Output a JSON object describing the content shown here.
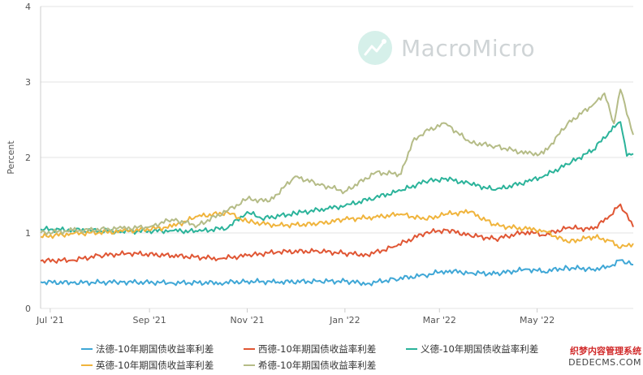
{
  "chart_data": {
    "type": "line",
    "ylabel": "Percent",
    "ylim": [
      0,
      4
    ],
    "yticks": [
      "0",
      "1",
      "2",
      "3",
      "4"
    ],
    "x_start": "2021-06-25",
    "x_end": "2022-06-30",
    "xticks": [
      {
        "label": "Jul '21",
        "date": "2021-07-01"
      },
      {
        "label": "Sep '21",
        "date": "2021-09-01"
      },
      {
        "label": "Nov '21",
        "date": "2021-11-01"
      },
      {
        "label": "Jan '22",
        "date": "2022-01-01"
      },
      {
        "label": "Mar '22",
        "date": "2022-03-01"
      },
      {
        "label": "May '22",
        "date": "2022-05-01"
      }
    ],
    "grid": true,
    "legend": "bottom",
    "series": [
      {
        "name": "法德-10年期国债收益率利差",
        "color": "#3fa7d6",
        "points": [
          [
            "2021-06-25",
            0.35
          ],
          [
            "2021-07-15",
            0.34
          ],
          [
            "2021-08-15",
            0.35
          ],
          [
            "2021-09-15",
            0.34
          ],
          [
            "2021-10-15",
            0.34
          ],
          [
            "2021-11-01",
            0.36
          ],
          [
            "2021-11-20",
            0.35
          ],
          [
            "2021-12-15",
            0.36
          ],
          [
            "2022-01-01",
            0.36
          ],
          [
            "2022-01-15",
            0.33
          ],
          [
            "2022-02-01",
            0.39
          ],
          [
            "2022-02-20",
            0.44
          ],
          [
            "2022-03-05",
            0.5
          ],
          [
            "2022-03-20",
            0.47
          ],
          [
            "2022-04-05",
            0.46
          ],
          [
            "2022-04-25",
            0.52
          ],
          [
            "2022-05-05",
            0.49
          ],
          [
            "2022-05-20",
            0.54
          ],
          [
            "2022-06-05",
            0.52
          ],
          [
            "2022-06-15",
            0.55
          ],
          [
            "2022-06-22",
            0.64
          ],
          [
            "2022-06-30",
            0.58
          ]
        ]
      },
      {
        "name": "西德-10年期国债收益率利差",
        "color": "#e05634",
        "points": [
          [
            "2021-06-25",
            0.63
          ],
          [
            "2021-07-15",
            0.64
          ],
          [
            "2021-08-01",
            0.7
          ],
          [
            "2021-08-20",
            0.73
          ],
          [
            "2021-09-15",
            0.7
          ],
          [
            "2021-10-15",
            0.66
          ],
          [
            "2021-11-01",
            0.7
          ],
          [
            "2021-11-20",
            0.75
          ],
          [
            "2021-12-15",
            0.76
          ],
          [
            "2022-01-01",
            0.73
          ],
          [
            "2022-01-15",
            0.71
          ],
          [
            "2022-02-01",
            0.82
          ],
          [
            "2022-02-20",
            1.0
          ],
          [
            "2022-03-05",
            1.04
          ],
          [
            "2022-03-20",
            0.97
          ],
          [
            "2022-04-05",
            0.92
          ],
          [
            "2022-04-25",
            1.02
          ],
          [
            "2022-05-05",
            0.97
          ],
          [
            "2022-05-20",
            1.07
          ],
          [
            "2022-06-05",
            1.05
          ],
          [
            "2022-06-15",
            1.22
          ],
          [
            "2022-06-22",
            1.38
          ],
          [
            "2022-06-30",
            1.08
          ]
        ]
      },
      {
        "name": "义德-10年期国债收益率利差",
        "color": "#2bb39a",
        "points": [
          [
            "2021-06-25",
            1.05
          ],
          [
            "2021-07-15",
            1.04
          ],
          [
            "2021-08-15",
            1.02
          ],
          [
            "2021-09-15",
            1.03
          ],
          [
            "2021-10-01",
            1.02
          ],
          [
            "2021-10-20",
            1.07
          ],
          [
            "2021-11-01",
            1.28
          ],
          [
            "2021-11-10",
            1.19
          ],
          [
            "2021-12-01",
            1.26
          ],
          [
            "2021-12-20",
            1.32
          ],
          [
            "2022-01-01",
            1.36
          ],
          [
            "2022-01-20",
            1.47
          ],
          [
            "2022-02-05",
            1.56
          ],
          [
            "2022-02-20",
            1.68
          ],
          [
            "2022-03-05",
            1.72
          ],
          [
            "2022-03-20",
            1.65
          ],
          [
            "2022-04-05",
            1.57
          ],
          [
            "2022-04-25",
            1.68
          ],
          [
            "2022-05-05",
            1.75
          ],
          [
            "2022-05-20",
            1.91
          ],
          [
            "2022-06-05",
            2.1
          ],
          [
            "2022-06-15",
            2.34
          ],
          [
            "2022-06-22",
            2.47
          ],
          [
            "2022-06-26",
            2.02
          ],
          [
            "2022-06-30",
            2.05
          ]
        ]
      },
      {
        "name": "英德-10年期国债收益率利差",
        "color": "#f0b43c",
        "points": [
          [
            "2021-06-25",
            0.95
          ],
          [
            "2021-07-15",
            0.99
          ],
          [
            "2021-08-15",
            1.02
          ],
          [
            "2021-09-15",
            1.08
          ],
          [
            "2021-10-01",
            1.22
          ],
          [
            "2021-10-20",
            1.27
          ],
          [
            "2021-11-01",
            1.15
          ],
          [
            "2021-11-20",
            1.1
          ],
          [
            "2021-12-15",
            1.12
          ],
          [
            "2022-01-01",
            1.18
          ],
          [
            "2022-01-20",
            1.21
          ],
          [
            "2022-02-05",
            1.25
          ],
          [
            "2022-02-20",
            1.18
          ],
          [
            "2022-03-05",
            1.25
          ],
          [
            "2022-03-20",
            1.28
          ],
          [
            "2022-04-05",
            1.1
          ],
          [
            "2022-04-25",
            1.05
          ],
          [
            "2022-05-05",
            1.03
          ],
          [
            "2022-05-20",
            0.88
          ],
          [
            "2022-06-05",
            0.95
          ],
          [
            "2022-06-15",
            0.9
          ],
          [
            "2022-06-22",
            0.8
          ],
          [
            "2022-06-30",
            0.86
          ]
        ]
      },
      {
        "name": "希德-10年期国债收益率利差",
        "color": "#b5bc87",
        "points": [
          [
            "2021-06-25",
            1.0
          ],
          [
            "2021-07-15",
            1.03
          ],
          [
            "2021-08-15",
            1.06
          ],
          [
            "2021-09-01",
            1.08
          ],
          [
            "2021-09-15",
            1.18
          ],
          [
            "2021-10-01",
            1.1
          ],
          [
            "2021-10-20",
            1.3
          ],
          [
            "2021-11-01",
            1.45
          ],
          [
            "2021-11-15",
            1.42
          ],
          [
            "2021-12-01",
            1.75
          ],
          [
            "2021-12-15",
            1.65
          ],
          [
            "2022-01-01",
            1.55
          ],
          [
            "2022-01-20",
            1.8
          ],
          [
            "2022-02-05",
            1.78
          ],
          [
            "2022-02-12",
            2.2
          ],
          [
            "2022-02-20",
            2.35
          ],
          [
            "2022-03-05",
            2.45
          ],
          [
            "2022-03-20",
            2.2
          ],
          [
            "2022-04-05",
            2.15
          ],
          [
            "2022-04-25",
            2.05
          ],
          [
            "2022-05-05",
            2.05
          ],
          [
            "2022-05-20",
            2.45
          ],
          [
            "2022-06-05",
            2.7
          ],
          [
            "2022-06-12",
            2.85
          ],
          [
            "2022-06-18",
            2.45
          ],
          [
            "2022-06-22",
            2.9
          ],
          [
            "2022-06-30",
            2.3
          ]
        ]
      }
    ]
  },
  "watermark": {
    "text": "MacroMicro",
    "icon": "chart-line-icon"
  },
  "corner": {
    "line1": "织梦内容管理系统",
    "line2": "DEDECMS.COM"
  }
}
